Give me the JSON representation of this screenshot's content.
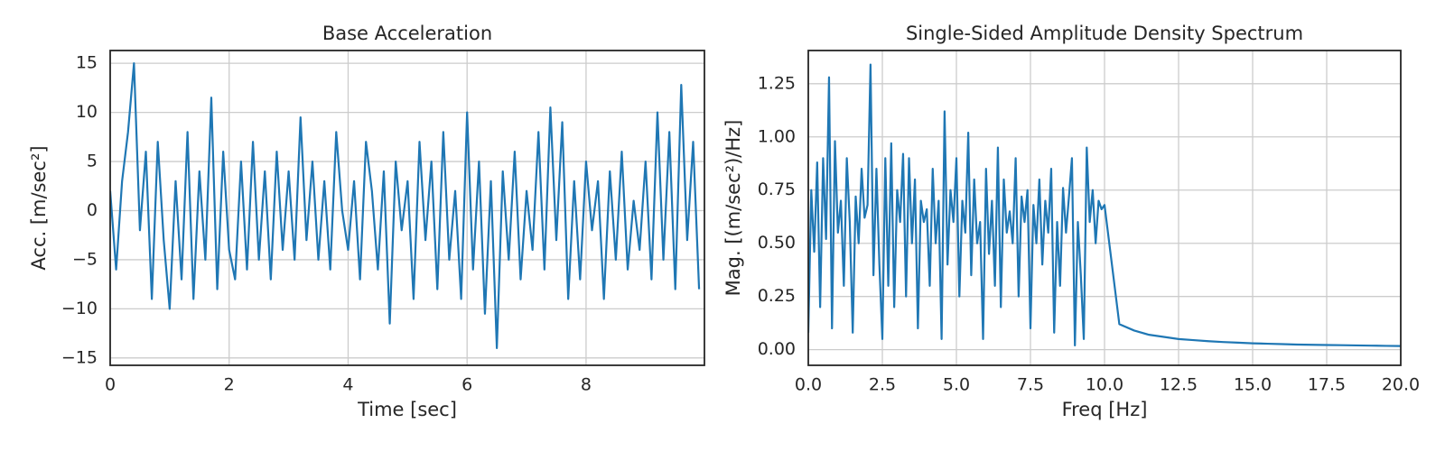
{
  "chart_data": [
    {
      "type": "line",
      "title": "Base Acceleration",
      "x_label": "Time [sec]",
      "y_label": "Acc. [m/sec²]",
      "color": "#1f77b4",
      "grid": true,
      "x": [
        0,
        0.1,
        0.2,
        0.3,
        0.4,
        0.5,
        0.6,
        0.7,
        0.8,
        0.9,
        1,
        1.1,
        1.2,
        1.3,
        1.4,
        1.5,
        1.6,
        1.7,
        1.8,
        1.9,
        2,
        2.1,
        2.2,
        2.3,
        2.4,
        2.5,
        2.6,
        2.7,
        2.8,
        2.9,
        3,
        3.1,
        3.2,
        3.3,
        3.4,
        3.5,
        3.6,
        3.7,
        3.8,
        3.9,
        4,
        4.1,
        4.2,
        4.3,
        4.4,
        4.5,
        4.6,
        4.7,
        4.8,
        4.9,
        5,
        5.1,
        5.2,
        5.3,
        5.4,
        5.5,
        5.6,
        5.7,
        5.8,
        5.9,
        6,
        6.1,
        6.2,
        6.3,
        6.4,
        6.5,
        6.6,
        6.7,
        6.8,
        6.9,
        7,
        7.1,
        7.2,
        7.3,
        7.4,
        7.5,
        7.6,
        7.7,
        7.8,
        7.9,
        8,
        8.1,
        8.2,
        8.3,
        8.4,
        8.5,
        8.6,
        8.7,
        8.8,
        8.9,
        9,
        9.1,
        9.2,
        9.3,
        9.4,
        9.5,
        9.6,
        9.7,
        9.8,
        9.9
      ],
      "values": [
        2,
        -6,
        3,
        8,
        15,
        -2,
        6,
        -9,
        7,
        -3,
        -10,
        3,
        -7,
        8,
        -9,
        4,
        -5,
        11.5,
        -8,
        6,
        -4,
        -7,
        5,
        -6,
        7,
        -5,
        4,
        -7,
        6,
        -4,
        4,
        -5,
        9.5,
        -3,
        5,
        -5,
        3,
        -6,
        8,
        0,
        -4,
        3,
        -7,
        7,
        2,
        -6,
        4,
        -11.5,
        5,
        -2,
        3,
        -9,
        7,
        -3,
        5,
        -8,
        8,
        -5,
        2,
        -9,
        10,
        -6,
        5,
        -10.5,
        3,
        -14,
        4,
        -5,
        6,
        -7,
        2,
        -4,
        8,
        -6,
        10.5,
        -3,
        9,
        -9,
        3,
        -7,
        5,
        -2,
        3,
        -9,
        4,
        -5,
        6,
        -6,
        1,
        -4,
        5,
        -7,
        10,
        -5,
        8,
        -8,
        12.8,
        -3,
        7,
        -8
      ],
      "xlim": [
        0,
        9.99
      ],
      "ylim": [
        -15.75,
        16.3
      ],
      "xticks": [
        0,
        2,
        4,
        6,
        8
      ],
      "yticks": [
        {
          "value": -15,
          "label": "−15"
        },
        {
          "value": -10,
          "label": "−10"
        },
        {
          "value": -5,
          "label": "−5"
        },
        0,
        5,
        10,
        15
      ]
    },
    {
      "type": "line",
      "title": "Single-Sided Amplitude Density Spectrum",
      "x_label": "Freq [Hz]",
      "y_label": "Mag. [(m/sec²)/Hz]",
      "color": "#1f77b4",
      "grid": true,
      "x": [
        0,
        0.1,
        0.2,
        0.3,
        0.4,
        0.5,
        0.6,
        0.7,
        0.8,
        0.9,
        1,
        1.1,
        1.2,
        1.3,
        1.4,
        1.5,
        1.6,
        1.7,
        1.8,
        1.9,
        2,
        2.1,
        2.2,
        2.3,
        2.4,
        2.5,
        2.6,
        2.7,
        2.8,
        2.9,
        3,
        3.1,
        3.2,
        3.3,
        3.4,
        3.5,
        3.6,
        3.7,
        3.8,
        3.9,
        4,
        4.1,
        4.2,
        4.3,
        4.4,
        4.5,
        4.6,
        4.7,
        4.8,
        4.9,
        5,
        5.1,
        5.2,
        5.3,
        5.4,
        5.5,
        5.6,
        5.7,
        5.8,
        5.9,
        6,
        6.1,
        6.2,
        6.3,
        6.4,
        6.5,
        6.6,
        6.7,
        6.8,
        6.9,
        7,
        7.1,
        7.2,
        7.3,
        7.4,
        7.5,
        7.6,
        7.7,
        7.8,
        7.9,
        8,
        8.1,
        8.2,
        8.3,
        8.4,
        8.5,
        8.6,
        8.7,
        8.8,
        8.9,
        9,
        9.1,
        9.2,
        9.3,
        9.4,
        9.5,
        9.6,
        9.7,
        9.8,
        9.9,
        10,
        10.5,
        11,
        11.5,
        12,
        12.5,
        13,
        13.5,
        14,
        14.5,
        15,
        15.5,
        16,
        16.5,
        17,
        17.5,
        18,
        18.5,
        19,
        19.5,
        20
      ],
      "values": [
        0.08,
        0.75,
        0.46,
        0.88,
        0.2,
        0.9,
        0.52,
        1.28,
        0.1,
        0.98,
        0.55,
        0.7,
        0.3,
        0.9,
        0.6,
        0.08,
        0.72,
        0.5,
        0.85,
        0.62,
        0.68,
        1.34,
        0.35,
        0.85,
        0.4,
        0.05,
        0.9,
        0.3,
        0.97,
        0.2,
        0.75,
        0.6,
        0.92,
        0.25,
        0.9,
        0.5,
        0.8,
        0.1,
        0.7,
        0.6,
        0.66,
        0.3,
        0.85,
        0.5,
        0.7,
        0.05,
        1.12,
        0.4,
        0.75,
        0.6,
        0.9,
        0.25,
        0.7,
        0.55,
        1.02,
        0.35,
        0.8,
        0.5,
        0.6,
        0.05,
        0.85,
        0.45,
        0.7,
        0.3,
        0.95,
        0.2,
        0.8,
        0.55,
        0.65,
        0.5,
        0.9,
        0.25,
        0.72,
        0.6,
        0.75,
        0.1,
        0.68,
        0.5,
        0.8,
        0.4,
        0.7,
        0.55,
        0.85,
        0.08,
        0.6,
        0.3,
        0.76,
        0.55,
        0.72,
        0.9,
        0.02,
        0.6,
        0.35,
        0.05,
        0.95,
        0.6,
        0.75,
        0.5,
        0.7,
        0.66,
        0.68,
        0.12,
        0.09,
        0.07,
        0.06,
        0.05,
        0.045,
        0.04,
        0.036,
        0.033,
        0.03,
        0.028,
        0.026,
        0.024,
        0.023,
        0.022,
        0.021,
        0.02,
        0.019,
        0.018,
        0.017
      ],
      "xlim": [
        0,
        20
      ],
      "ylim": [
        -0.0735,
        1.406
      ],
      "xticks": [
        {
          "value": 0,
          "label": "0.0"
        },
        2.5,
        {
          "value": 5,
          "label": "5.0"
        },
        7.5,
        {
          "value": 10,
          "label": "10.0"
        },
        12.5,
        {
          "value": 15,
          "label": "15.0"
        },
        17.5,
        {
          "value": 20,
          "label": "20.0"
        }
      ],
      "yticks": [
        {
          "value": 0,
          "label": "0.00"
        },
        0.25,
        {
          "value": 0.5,
          "label": "0.50"
        },
        0.75,
        {
          "value": 1,
          "label": "1.00"
        },
        1.25
      ]
    }
  ]
}
